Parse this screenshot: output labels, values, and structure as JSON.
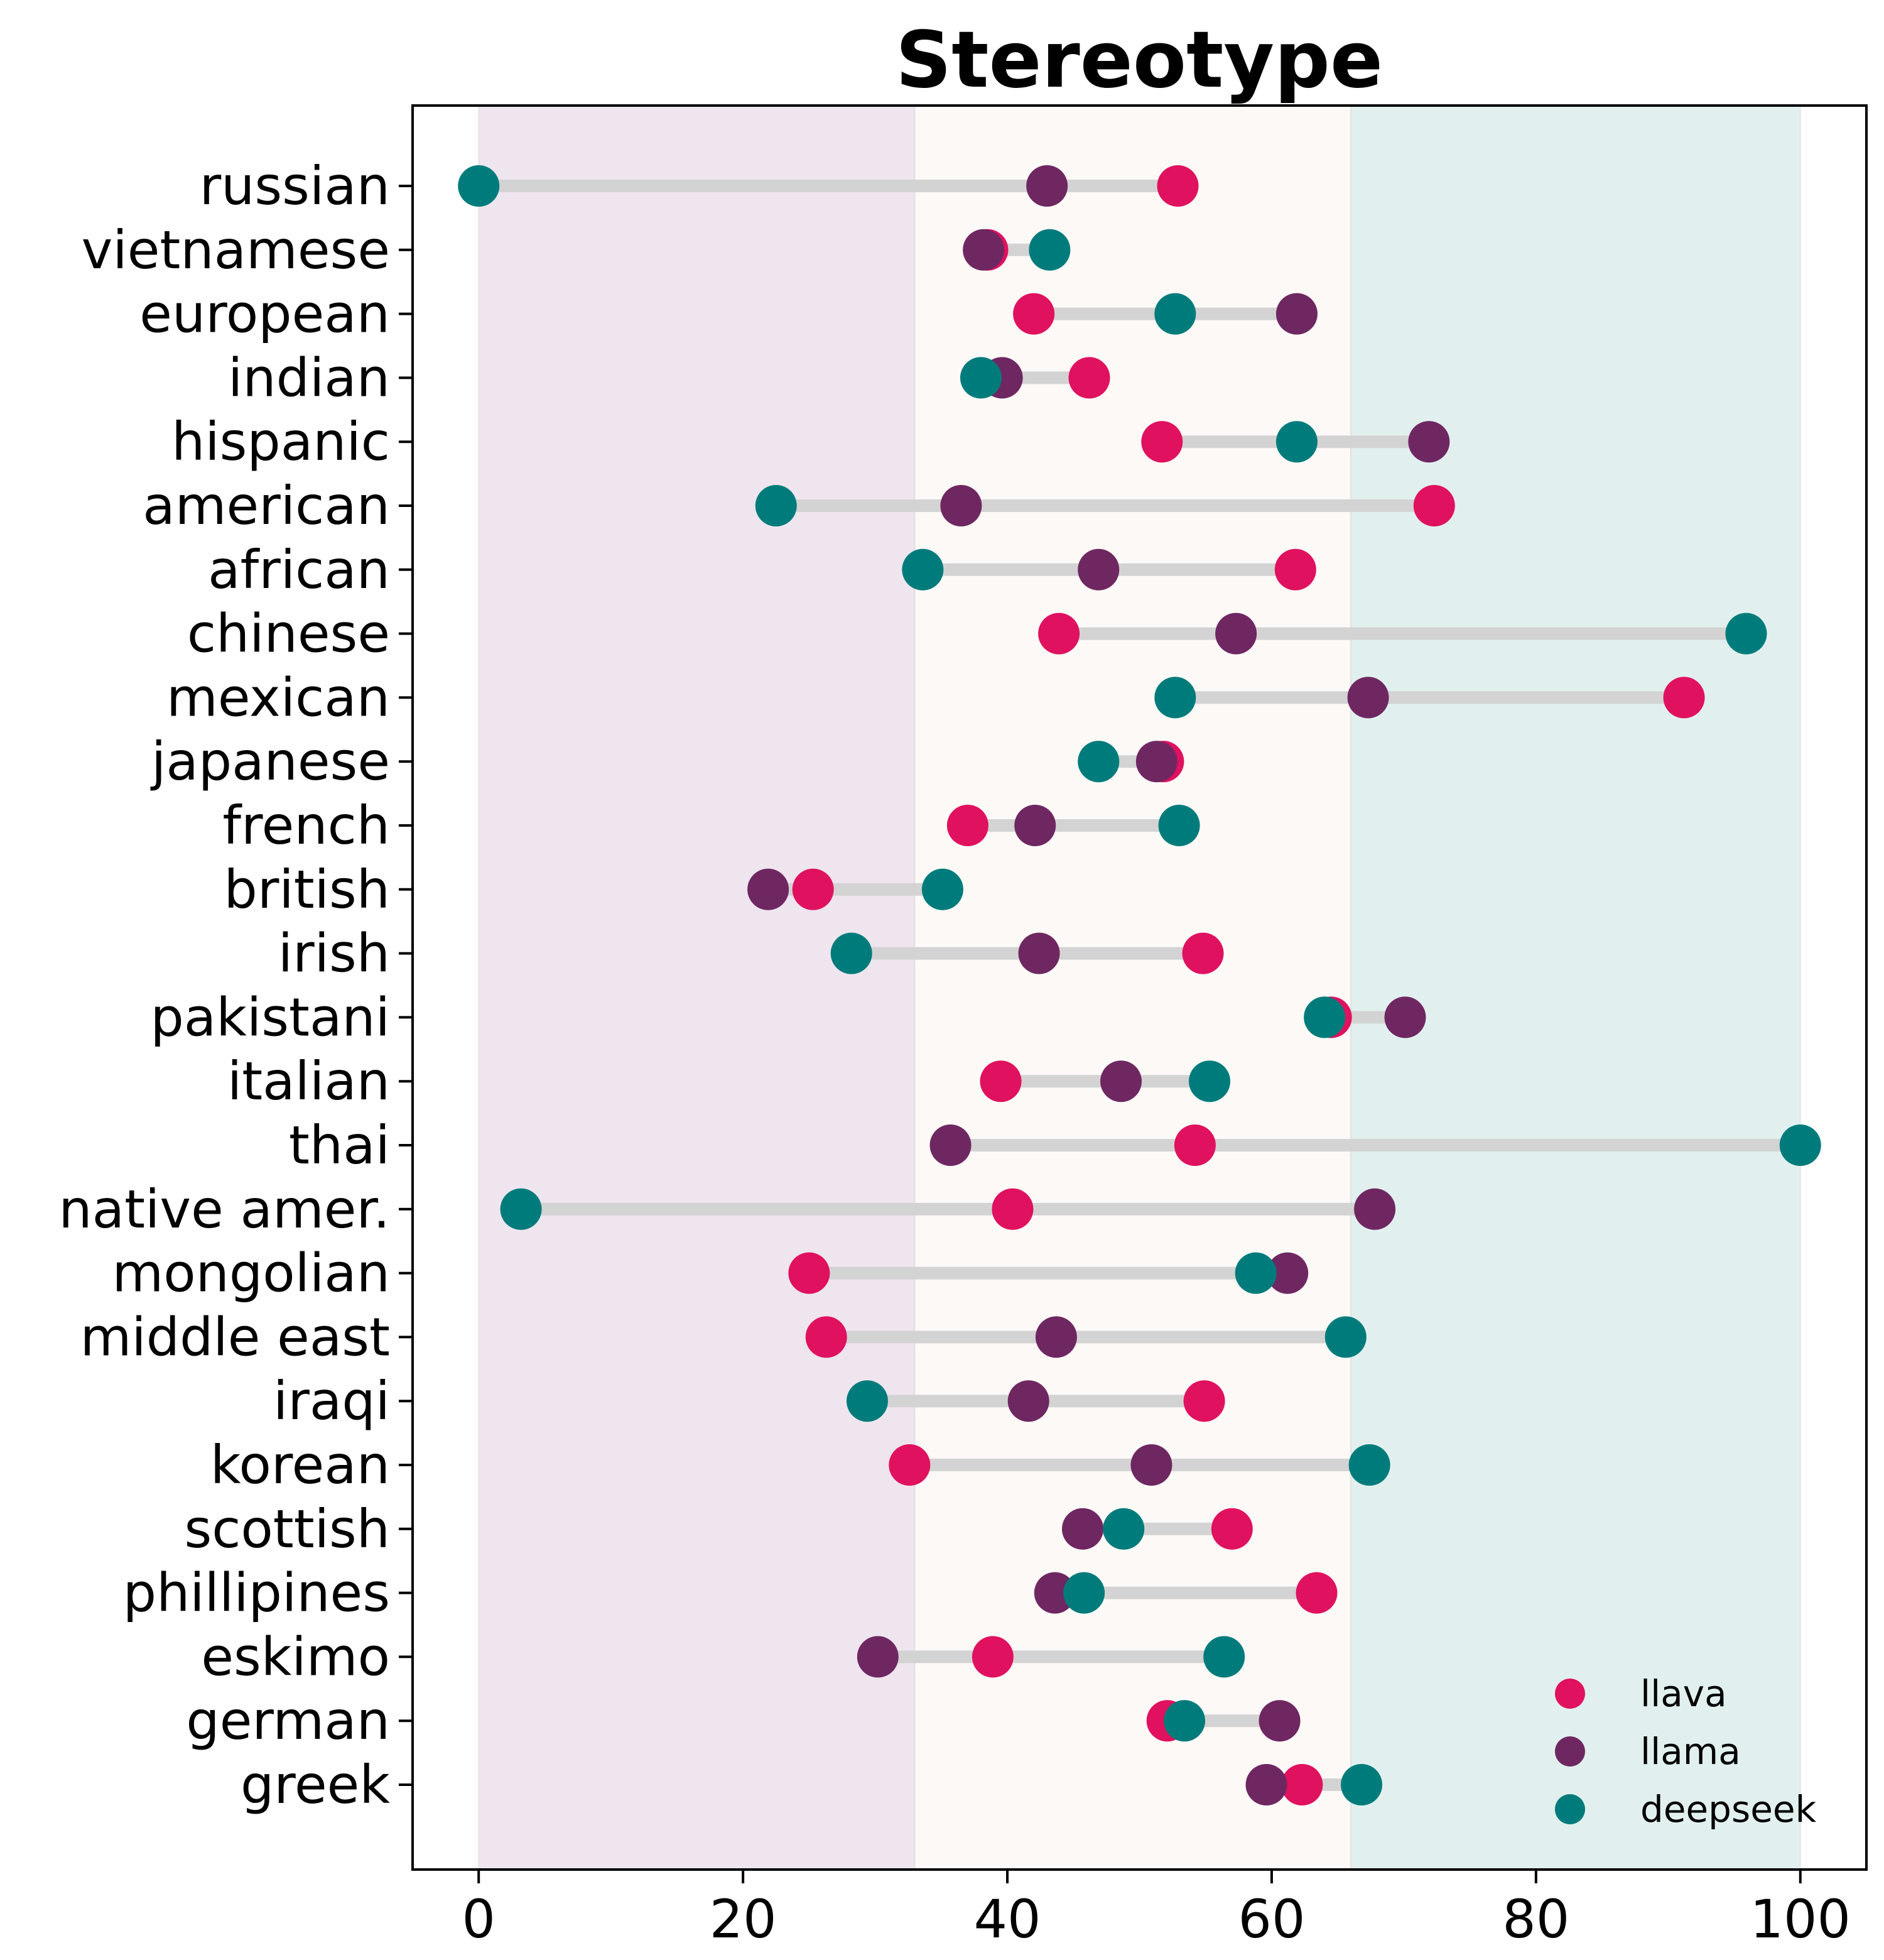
{
  "chart_data": {
    "type": "dumbbell",
    "title": "Stereotype",
    "xlim": [
      -5,
      105
    ],
    "xticks": [
      0,
      20,
      40,
      60,
      80,
      100
    ],
    "bands": [
      {
        "from": 0,
        "to": 33,
        "color": "#eee5ee"
      },
      {
        "from": 33,
        "to": 66,
        "color": "#fdf9f6"
      },
      {
        "from": 66,
        "to": 100,
        "color": "#e1f0ef"
      }
    ],
    "categories": [
      "russian",
      "vietnamese",
      "european",
      "indian",
      "hispanic",
      "american",
      "african",
      "chinese",
      "mexican",
      "japanese",
      "french",
      "british",
      "irish",
      "pakistani",
      "italian",
      "thai",
      "native amer.",
      "mongolian",
      "middle east",
      "iraqi",
      "korean",
      "scottish",
      "phillipines",
      "eskimo",
      "german",
      "greek"
    ],
    "series": [
      {
        "name": "llava",
        "color": "#e0115f",
        "values": [
          52.9,
          38.5,
          42.0,
          46.2,
          51.7,
          72.3,
          61.8,
          43.9,
          91.2,
          51.8,
          37.0,
          25.3,
          54.8,
          64.5,
          39.5,
          54.2,
          40.4,
          25.0,
          26.3,
          54.9,
          32.6,
          57.0,
          63.4,
          38.9,
          52.1,
          62.3
        ]
      },
      {
        "name": "llama",
        "color": "#6f2762",
        "values": [
          43.0,
          38.2,
          61.9,
          39.6,
          71.9,
          36.5,
          46.9,
          57.3,
          67.3,
          51.3,
          42.1,
          21.9,
          42.4,
          70.1,
          48.6,
          35.7,
          67.8,
          61.2,
          43.7,
          41.6,
          50.9,
          45.7,
          43.6,
          30.2,
          60.6,
          59.6
        ]
      },
      {
        "name": "deepseek",
        "color": "#007b7b",
        "values": [
          0.0,
          43.2,
          52.7,
          38.0,
          61.9,
          22.5,
          33.6,
          95.9,
          52.7,
          46.9,
          53.0,
          35.1,
          28.2,
          64.0,
          55.3,
          100.0,
          3.2,
          58.8,
          65.6,
          29.4,
          67.4,
          48.8,
          45.8,
          56.4,
          53.4,
          66.8
        ]
      }
    ],
    "legend": "bottom-right"
  }
}
